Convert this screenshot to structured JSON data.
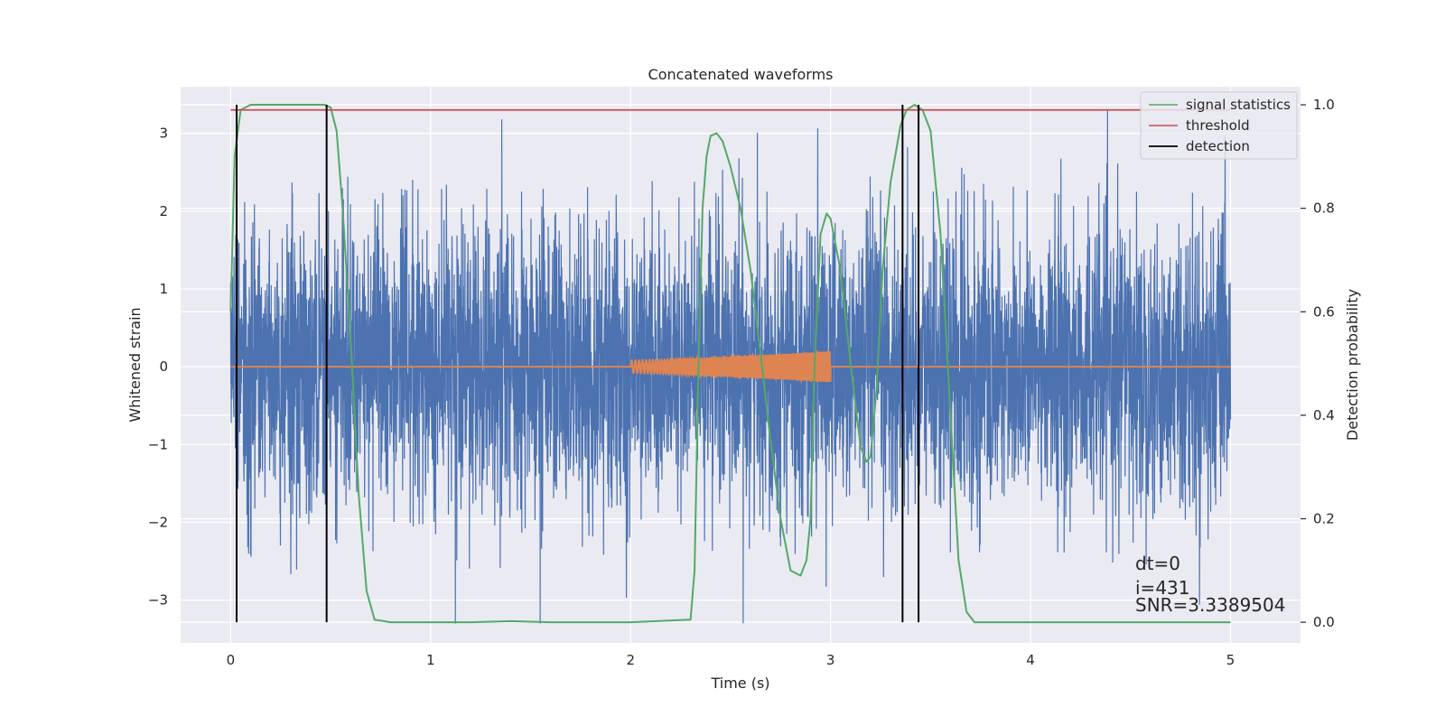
{
  "chart_data": {
    "type": "line",
    "title": "Concatenated waveforms",
    "xlabel": "Time (s)",
    "ylabel_left": "Whitened strain",
    "ylabel_right": "Detection probability",
    "xlim": [
      -0.25,
      5.35
    ],
    "ylim_left": [
      -3.55,
      3.6
    ],
    "ylim_right": [
      -0.04,
      1.035
    ],
    "x_ticks": [
      0,
      1,
      2,
      3,
      4,
      5
    ],
    "y_ticks_left": [
      -3,
      -2,
      -1,
      0,
      1,
      2,
      3
    ],
    "y_ticks_right": [
      0.0,
      0.2,
      0.4,
      0.6,
      0.8,
      1.0
    ],
    "x_tick_labels": [
      "0",
      "1",
      "2",
      "3",
      "4",
      "5"
    ],
    "y_tick_labels_left": [
      "−3",
      "−2",
      "−1",
      "0",
      "1",
      "2",
      "3"
    ],
    "y_tick_labels_right": [
      "0.0",
      "0.2",
      "0.4",
      "0.6",
      "0.8",
      "1.0"
    ],
    "grid": true,
    "legend_position": "top-right",
    "colors": {
      "strain": "#4c72b0",
      "template": "#dd8452",
      "signal_statistics": "#55a868",
      "threshold": "#c44e52",
      "detection": "#000000",
      "axes_bg": "#eaeaf2",
      "grid": "#ffffff"
    },
    "series": [
      {
        "name": "whitened strain",
        "axis": "left",
        "x_range": [
          0,
          5
        ],
        "noise_sigma": 0.9,
        "y_range": [
          -3.3,
          3.3
        ]
      },
      {
        "name": "template",
        "axis": "left",
        "x_range": [
          0,
          5
        ],
        "chirp_start": 2.0,
        "chirp_end": 3.0,
        "amplitude_start": 0.08,
        "amplitude_end": 0.2
      },
      {
        "name": "signal statistics",
        "axis": "right",
        "x": [
          0,
          0.02,
          0.05,
          0.1,
          0.2,
          0.3,
          0.4,
          0.47,
          0.5,
          0.53,
          0.56,
          0.6,
          0.64,
          0.68,
          0.72,
          0.8,
          1.0,
          1.2,
          1.4,
          1.6,
          2.0,
          2.3,
          2.32,
          2.34,
          2.36,
          2.38,
          2.4,
          2.43,
          2.46,
          2.5,
          2.55,
          2.6,
          2.65,
          2.7,
          2.75,
          2.8,
          2.85,
          2.88,
          2.9,
          2.92,
          2.95,
          2.98,
          3.0,
          3.05,
          3.1,
          3.15,
          3.18,
          3.2,
          3.23,
          3.26,
          3.3,
          3.35,
          3.38,
          3.42,
          3.46,
          3.5,
          3.55,
          3.6,
          3.64,
          3.68,
          3.72,
          3.8,
          4.0,
          4.5,
          5.0
        ],
        "y": [
          0.6,
          0.9,
          0.99,
          1.0,
          1.0,
          1.0,
          1.0,
          1.0,
          0.995,
          0.95,
          0.8,
          0.55,
          0.25,
          0.06,
          0.005,
          0.0,
          0.0,
          0.0,
          0.002,
          0.0,
          0.0,
          0.005,
          0.1,
          0.5,
          0.8,
          0.9,
          0.94,
          0.945,
          0.93,
          0.88,
          0.8,
          0.68,
          0.52,
          0.35,
          0.2,
          0.1,
          0.09,
          0.12,
          0.2,
          0.5,
          0.75,
          0.79,
          0.78,
          0.68,
          0.5,
          0.34,
          0.31,
          0.32,
          0.45,
          0.68,
          0.85,
          0.96,
          0.99,
          1.0,
          0.99,
          0.95,
          0.75,
          0.4,
          0.12,
          0.02,
          0.0,
          0.0,
          0.0,
          0.0,
          0.0
        ]
      },
      {
        "name": "threshold",
        "axis": "right",
        "x": [
          0,
          5
        ],
        "y": [
          0.99,
          0.99
        ]
      },
      {
        "name": "detection",
        "axis": "right",
        "x": [
          0.03,
          0.48,
          3.36,
          3.44
        ],
        "y_range": [
          0.0,
          1.0
        ]
      }
    ],
    "legend": [
      "signal statistics",
      "threshold",
      "detection"
    ],
    "annotations": [
      "dt=0",
      "i=431",
      "SNR=3.3389504"
    ]
  }
}
